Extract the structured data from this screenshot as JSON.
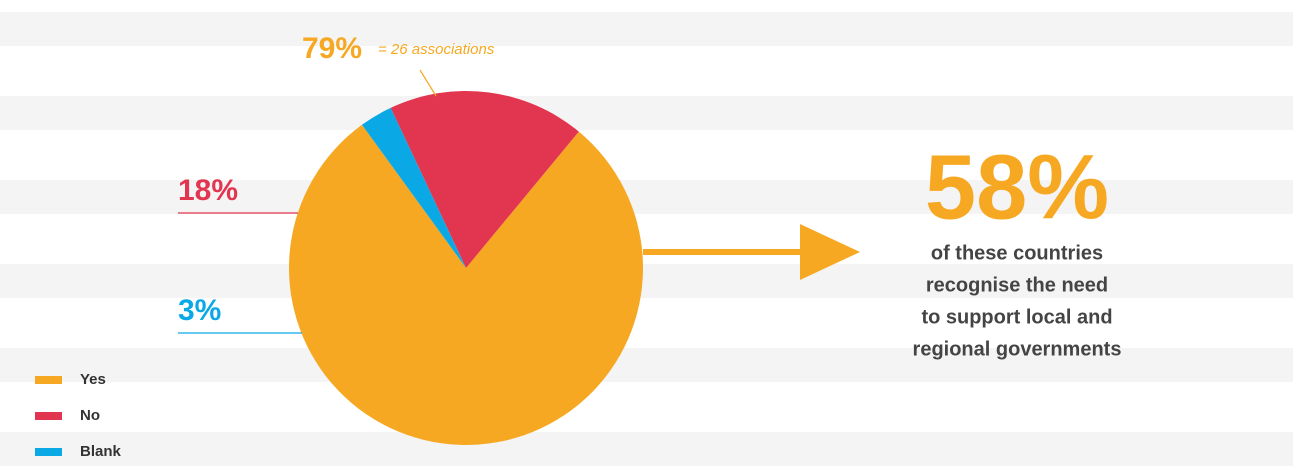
{
  "chart_data": {
    "type": "pie",
    "categories": [
      "Yes",
      "No",
      "Blank"
    ],
    "values": [
      79,
      18,
      3
    ],
    "value_labels": [
      "79%",
      "18%",
      "3%"
    ],
    "colors": [
      "#f7a823",
      "#e2354f",
      "#0aa9e6"
    ],
    "annotation": "= 26 associations",
    "callout": {
      "headline": "58%",
      "lines": [
        "of these countries",
        "recognise the need",
        "to support local and",
        "regional governments"
      ]
    }
  }
}
